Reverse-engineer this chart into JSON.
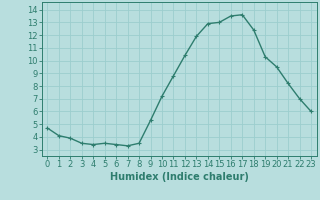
{
  "x": [
    0,
    1,
    2,
    3,
    4,
    5,
    6,
    7,
    8,
    9,
    10,
    11,
    12,
    13,
    14,
    15,
    16,
    17,
    18,
    19,
    20,
    21,
    22,
    23
  ],
  "y": [
    4.7,
    4.1,
    3.9,
    3.5,
    3.4,
    3.5,
    3.4,
    3.3,
    3.5,
    5.3,
    7.2,
    8.8,
    10.4,
    11.9,
    12.9,
    13.0,
    13.5,
    13.6,
    12.4,
    10.3,
    9.5,
    8.2,
    7.0,
    6.0
  ],
  "line_color": "#2e7d6e",
  "marker": "+",
  "marker_size": 3,
  "line_width": 1.0,
  "bg_color": "#b8dede",
  "grid_color": "#9ccece",
  "xlabel": "Humidex (Indice chaleur)",
  "xlabel_fontsize": 7,
  "ytick_labels": [
    "3",
    "4",
    "5",
    "6",
    "7",
    "8",
    "9",
    "10",
    "11",
    "12",
    "13",
    "14"
  ],
  "ytick_values": [
    3,
    4,
    5,
    6,
    7,
    8,
    9,
    10,
    11,
    12,
    13,
    14
  ],
  "xtick_values": [
    0,
    1,
    2,
    3,
    4,
    5,
    6,
    7,
    8,
    9,
    10,
    11,
    12,
    13,
    14,
    15,
    16,
    17,
    18,
    19,
    20,
    21,
    22,
    23
  ],
  "xlim": [
    -0.5,
    23.5
  ],
  "ylim": [
    2.5,
    14.6
  ],
  "tick_fontsize": 6,
  "tick_color": "#2e7d6e",
  "axis_color": "#2e7d6e"
}
